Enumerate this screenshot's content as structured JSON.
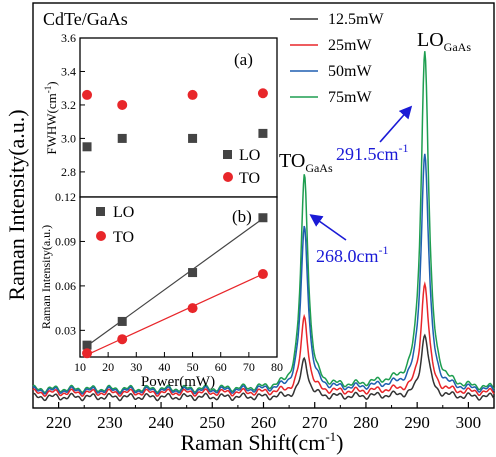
{
  "colors": {
    "12.5mW": "#333333",
    "25mW": "#e8262a",
    "50mW": "#1f5fb0",
    "75mW": "#1e9e50",
    "annotation": "#1a1ad6",
    "lo_marker": "#444444",
    "to_marker": "#e8262a"
  },
  "chart_data": [
    {
      "id": "main",
      "type": "line",
      "title": "CdTe/GaAs",
      "xlabel": "Raman Shift(cm",
      "xlabel_sup": "-1",
      "xlabel_end": ")",
      "ylabel": "Raman Intensity(a.u.)",
      "xlim": [
        215,
        305
      ],
      "ylim": [
        0,
        1.0
      ],
      "xticks": [
        220,
        230,
        240,
        250,
        260,
        270,
        280,
        290,
        300
      ],
      "legend_position": "top-right",
      "series": [
        {
          "name": "12.5mW",
          "color_key": "12.5mW",
          "peak_to": 0.105,
          "peak_lo": 0.175,
          "baseline": 0.0
        },
        {
          "name": "25mW",
          "color_key": "25mW",
          "peak_to": 0.21,
          "peak_lo": 0.305,
          "baseline": 0.012
        },
        {
          "name": "50mW",
          "color_key": "50mW",
          "peak_to": 0.455,
          "peak_lo": 0.66,
          "baseline": 0.018
        },
        {
          "name": "75mW",
          "color_key": "75mW",
          "peak_to": 0.595,
          "peak_lo": 0.94,
          "baseline": 0.022
        }
      ],
      "peaks": {
        "to_position": 268.0,
        "lo_position": 291.5,
        "to_width": 0.85,
        "lo_width": 0.9
      },
      "annotations": [
        {
          "id": "to-label",
          "text": "TO",
          "sub": "GaAs"
        },
        {
          "id": "lo-label",
          "text": "LO",
          "sub": "GaAs"
        },
        {
          "id": "to-shift",
          "text": "268.0cm",
          "sup": "-1"
        },
        {
          "id": "lo-shift",
          "text": "291.5cm",
          "sup": "-1"
        }
      ]
    },
    {
      "id": "inset-a",
      "type": "scatter",
      "panel_label": "(a)",
      "ylabel": "FWHW(cm",
      "ylabel_sup": "-1",
      "ylabel_end": ")",
      "xlim": [
        10,
        80
      ],
      "ylim": [
        2.65,
        3.6
      ],
      "yticks": [
        2.8,
        3.0,
        3.2,
        3.4,
        3.6
      ],
      "series": [
        {
          "name": "LO",
          "marker": "square",
          "x": [
            12.5,
            25,
            50,
            75
          ],
          "y": [
            2.95,
            3.0,
            3.0,
            3.03
          ]
        },
        {
          "name": "TO",
          "marker": "circle",
          "x": [
            12.5,
            25,
            50,
            75
          ],
          "y": [
            3.26,
            3.2,
            3.26,
            3.27
          ]
        }
      ]
    },
    {
      "id": "inset-b",
      "type": "line",
      "panel_label": "(b)",
      "ylabel": "Raman Intensity(a.u.)",
      "xlabel": "Power(mW)",
      "xlim": [
        10,
        80
      ],
      "ylim": [
        0.012,
        0.12
      ],
      "xticks": [
        10,
        20,
        30,
        40,
        50,
        60,
        70,
        80
      ],
      "yticks": [
        0.03,
        0.06,
        0.09,
        0.12
      ],
      "ytick_labels": [
        "0.03",
        "0.06",
        "0.09",
        "0.12"
      ],
      "series": [
        {
          "name": "LO",
          "marker": "square",
          "x": [
            12.5,
            25,
            50,
            75
          ],
          "y": [
            0.02,
            0.036,
            0.069,
            0.106
          ],
          "fit": [
            [
              12.5,
              0.0195
            ],
            [
              75,
              0.1055
            ]
          ]
        },
        {
          "name": "TO",
          "marker": "circle",
          "x": [
            12.5,
            25,
            50,
            75
          ],
          "y": [
            0.0145,
            0.024,
            0.045,
            0.068
          ],
          "fit": [
            [
              12.5,
              0.0135
            ],
            [
              75,
              0.068
            ]
          ]
        }
      ]
    }
  ]
}
